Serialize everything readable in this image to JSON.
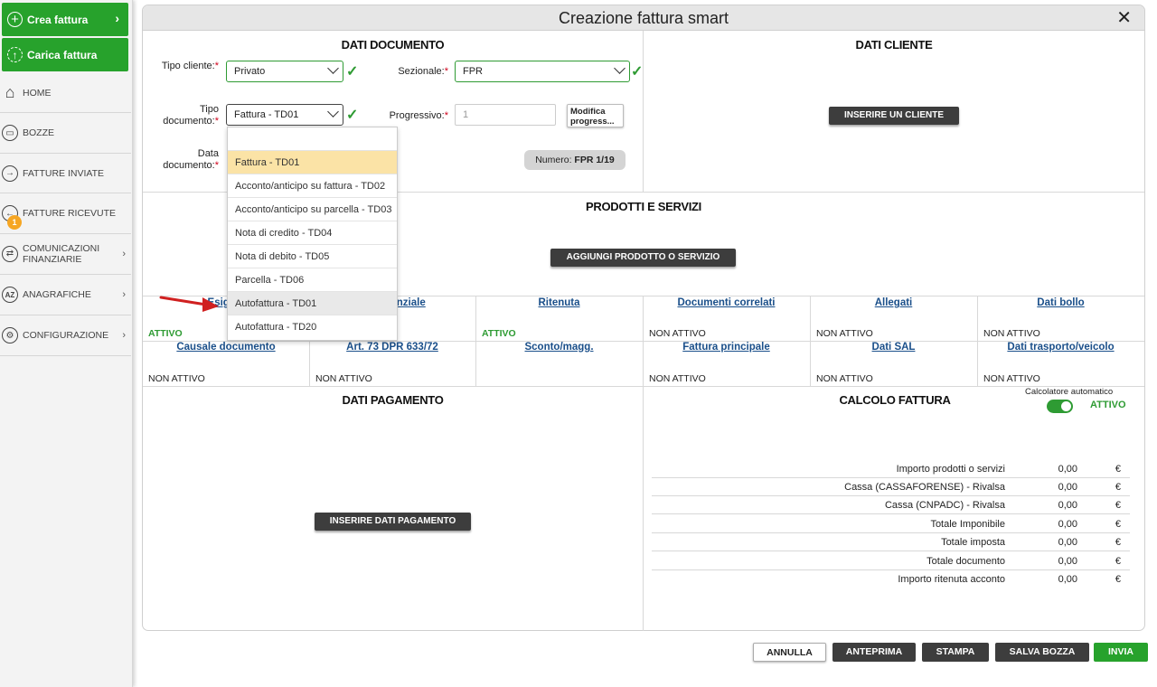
{
  "sidebar": {
    "create_invoice": "Crea fattura",
    "upload_invoice": "Carica fattura",
    "items": [
      {
        "label": "HOME",
        "icon": "home-icon"
      },
      {
        "label": "BOZZE",
        "icon": "drafts-icon"
      },
      {
        "label": "FATTURE INVIATE",
        "icon": "arrow-right-icon"
      },
      {
        "label": "FATTURE RICEVUTE",
        "icon": "arrow-left-icon"
      },
      {
        "label": "COMUNICAZIONI FINANZIARIE",
        "icon": "exchange-icon"
      },
      {
        "label": "ANAGRAFICHE",
        "icon": "az-icon"
      },
      {
        "label": "CONFIGURAZIONE",
        "icon": "gear-icon"
      }
    ],
    "received_badge": "1"
  },
  "dialog": {
    "title": "Creazione fattura smart",
    "close": "✕"
  },
  "documento": {
    "title": "DATI DOCUMENTO",
    "tipo_cliente_label": "Tipo cliente:",
    "tipo_cliente_value": "Privato",
    "sezionale_label": "Sezionale:",
    "sezionale_value": "FPR",
    "tipo_documento_label": "Tipo documento:",
    "tipo_documento_value": "Fattura - TD01",
    "progressivo_label": "Progressivo:",
    "progressivo_placeholder": "1",
    "modifica_label": "Modifica progress...",
    "data_documento_label": "Data documento:",
    "numero_label": "Numero:",
    "numero_value": "FPR 1/19",
    "required_mark": "*"
  },
  "dropdown_options": [
    "Fattura - TD01",
    "Acconto/anticipo su fattura - TD02",
    "Acconto/anticipo su parcella - TD03",
    "Nota di credito - TD04",
    "Nota di debito - TD05",
    "Parcella - TD06",
    "Autofattura - TD01",
    "Autofattura - TD20"
  ],
  "cliente": {
    "title": "DATI CLIENTE",
    "insert_button": "INSERIRE UN CLIENTE"
  },
  "prodotti": {
    "title": "PRODOTTI E SERVIZI",
    "add_button": "AGGIUNGI PRODOTTO O SERVIZIO"
  },
  "grid_row1": [
    {
      "link": "Esigibil",
      "status": "ATTIVO"
    },
    {
      "link": "Previdenziale",
      "status": ""
    },
    {
      "link": "Ritenuta",
      "status": "ATTIVO"
    },
    {
      "link": "Documenti correlati",
      "status": "NON ATTIVO"
    },
    {
      "link": "Allegati",
      "status": "NON ATTIVO"
    },
    {
      "link": "Dati bollo",
      "status": "NON ATTIVO"
    }
  ],
  "grid_row2": [
    {
      "link": "Causale documento",
      "status": "NON ATTIVO"
    },
    {
      "link": "Art. 73 DPR 633/72",
      "status": "NON ATTIVO"
    },
    {
      "link": "Sconto/magg.",
      "status": ""
    },
    {
      "link": "Fattura principale",
      "status": "NON ATTIVO"
    },
    {
      "link": "Dati SAL",
      "status": "NON ATTIVO"
    },
    {
      "link": "Dati trasporto/veicolo",
      "status": "NON ATTIVO"
    }
  ],
  "pagamento": {
    "title": "DATI PAGAMENTO",
    "insert_button": "INSERIRE DATI PAGAMENTO"
  },
  "calcolo": {
    "title": "CALCOLO FATTURA",
    "auto_label": "Calcolatore automatico",
    "auto_status": "ATTIVO",
    "auto_enabled": true,
    "currency": "€",
    "rows": [
      {
        "label": "Importo prodotti o servizi",
        "value": "0,00"
      },
      {
        "label": "Cassa (CASSAFORENSE) - Rivalsa",
        "value": "0,00"
      },
      {
        "label": "Cassa (CNPADC) - Rivalsa",
        "value": "0,00"
      },
      {
        "label": "Totale Imponibile",
        "value": "0,00"
      },
      {
        "label": "Totale imposta",
        "value": "0,00"
      },
      {
        "label": "Totale documento",
        "value": "0,00"
      },
      {
        "label": "Importo ritenuta acconto",
        "value": "0,00"
      }
    ]
  },
  "footer": {
    "annulla": "ANNULLA",
    "anteprima": "ANTEPRIMA",
    "stampa": "STAMPA",
    "salva_bozza": "SALVA BOZZA",
    "invia": "INVIA"
  },
  "colors": {
    "accent_green": "#27a22c",
    "dark_button": "#3d3d3d",
    "link_blue": "#1a4f8a",
    "selected_option": "#fbe3a6",
    "annotation_arrow": "#d02020"
  }
}
